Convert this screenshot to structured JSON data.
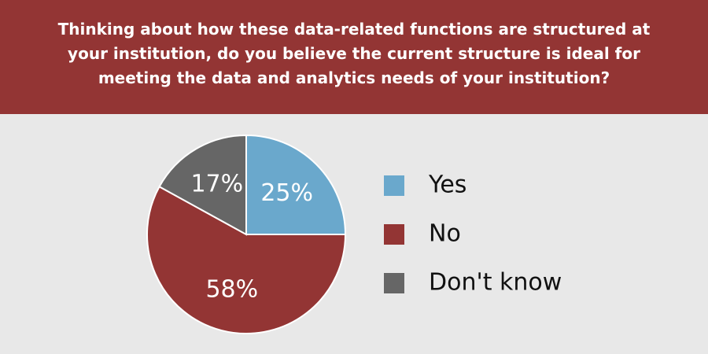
{
  "chart_data": {
    "type": "pie",
    "title": "Thinking about how these data-related functions are structured at your institution, do you believe the current structure is ideal for meeting the data and analytics needs of your institution?",
    "categories": [
      "Yes",
      "No",
      "Don't know"
    ],
    "values": [
      25,
      58,
      17
    ],
    "value_labels": [
      "25%",
      "58%",
      "17%"
    ],
    "colors": [
      "#6aa8cc",
      "#933534",
      "#666666"
    ]
  }
}
